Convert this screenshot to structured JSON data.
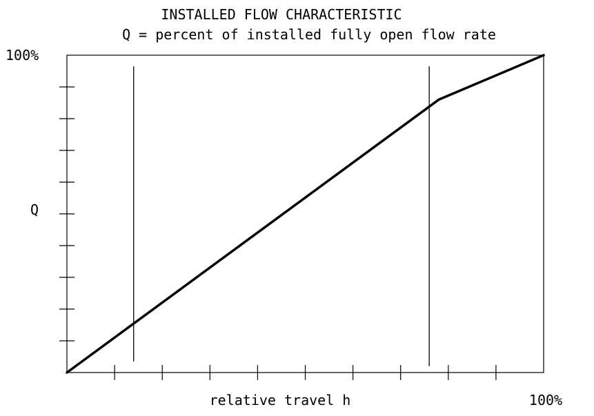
{
  "chart_data": {
    "type": "line",
    "title": "INSTALLED FLOW CHARACTERISTIC",
    "subtitle": "Q = percent of installed fully open flow rate",
    "xlabel": "relative travel h",
    "ylabel": "Q",
    "x_max_label": "100%",
    "y_max_label": "100%",
    "xlim": [
      0,
      100
    ],
    "ylim": [
      0,
      100
    ],
    "grid": false,
    "series": [
      {
        "x": [
          0,
          78,
          100
        ],
        "y": [
          0,
          86,
          100
        ]
      }
    ],
    "x_ticks": [
      10,
      20,
      30,
      40,
      50,
      60,
      70,
      80,
      90
    ],
    "y_ticks": [
      10,
      20,
      30,
      40,
      50,
      60,
      70,
      80,
      90
    ],
    "reference_lines": [
      {
        "x": 14,
        "y_from": 3.5,
        "y_to": 96.5
      },
      {
        "x": 76,
        "y_from": 2.0,
        "y_to": 96.5
      }
    ],
    "colors": {
      "line": "#000000",
      "axis": "#000000"
    }
  }
}
